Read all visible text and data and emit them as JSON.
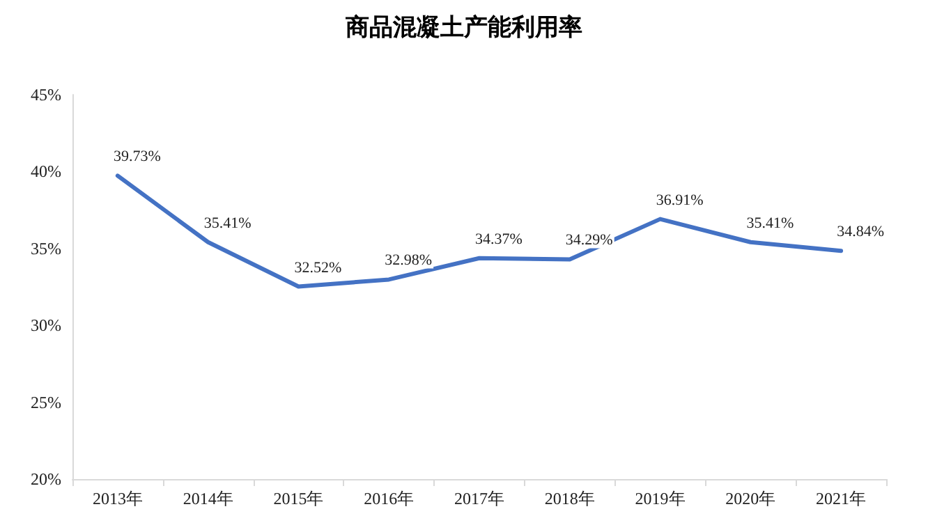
{
  "chart_data": {
    "type": "line",
    "title": "商品混凝土产能利用率",
    "categories": [
      "2013年",
      "2014年",
      "2015年",
      "2016年",
      "2017年",
      "2018年",
      "2019年",
      "2020年",
      "2021年"
    ],
    "series": [
      {
        "color": "#4472c4",
        "values": [
          39.73,
          35.41,
          32.52,
          32.98,
          34.37,
          34.29,
          36.91,
          35.41,
          34.84
        ],
        "value_labels": [
          "39.73%",
          "35.41%",
          "32.52%",
          "32.98%",
          "34.37%",
          "34.29%",
          "36.91%",
          "35.41%",
          "34.84%"
        ]
      }
    ],
    "ylim": [
      20,
      45
    ],
    "yticks": [
      {
        "value": 20,
        "label": "20%"
      },
      {
        "value": 25,
        "label": "25%"
      },
      {
        "value": 30,
        "label": "30%"
      },
      {
        "value": 35,
        "label": "35%"
      },
      {
        "value": 40,
        "label": "40%"
      },
      {
        "value": 45,
        "label": "45%"
      }
    ],
    "grid": false,
    "marker": "none",
    "line_style": "solid"
  }
}
